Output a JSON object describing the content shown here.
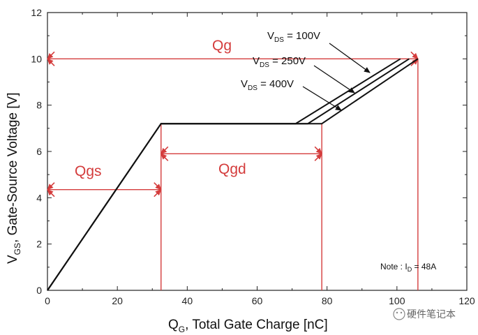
{
  "chart_data": {
    "type": "line",
    "xlabel_main": "Q",
    "xlabel_sub": "G",
    "xlabel_rest": ", Total Gate Charge [nC]",
    "ylabel_main": "V",
    "ylabel_sub": "GS",
    "ylabel_rest": ", Gate-Source Voltage [V]",
    "xlim": [
      0,
      120
    ],
    "ylim": [
      0,
      12
    ],
    "x_ticks": [
      0,
      20,
      40,
      60,
      80,
      100,
      120
    ],
    "y_ticks": [
      0,
      2,
      4,
      6,
      8,
      10,
      12
    ],
    "series": [
      {
        "name": "VDS = 100V",
        "x": [
          0,
          32.5,
          71,
          101
        ],
        "y": [
          0,
          7.2,
          7.2,
          10
        ]
      },
      {
        "name": "VDS = 250V",
        "x": [
          0,
          32.5,
          74.5,
          103.5
        ],
        "y": [
          0,
          7.2,
          7.2,
          10
        ]
      },
      {
        "name": "VDS = 400V",
        "x": [
          0,
          32.5,
          78.5,
          106
        ],
        "y": [
          0,
          7.2,
          7.2,
          10
        ]
      }
    ],
    "series_labels": [
      {
        "main": "V",
        "sub": "DS",
        "rest": " = 100V"
      },
      {
        "main": "V",
        "sub": "DS",
        "rest": " = 250V"
      },
      {
        "main": "V",
        "sub": "DS",
        "rest": " = 400V"
      }
    ],
    "annotations": {
      "qg": "Qg",
      "qgs": "Qgs",
      "qgd": "Qgd",
      "note_prefix": "Note : I",
      "note_sub": "D",
      "note_rest": " = 48A"
    },
    "markers": {
      "qgs_x": 32.5,
      "qgd_x": 78.5,
      "qg_x": 106,
      "qg_y": 10,
      "qgs_y": 4.35,
      "qgd_y": 5.9
    },
    "colors": {
      "line": "#111111",
      "annotation": "#d43c3c"
    },
    "grid": false,
    "watermark": "硬件笔记本"
  }
}
